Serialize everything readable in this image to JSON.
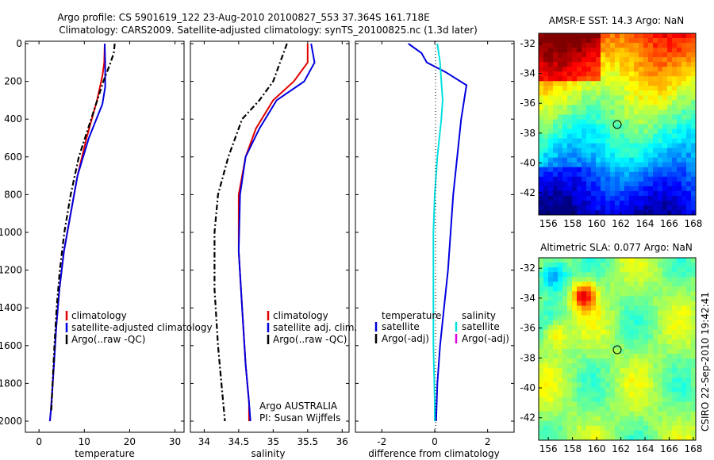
{
  "header": {
    "line1": "Argo profile: CS 5901619_122 23-Aug-2010 20100827_553 37.364S 161.718E",
    "line2": "Climatology: CARS2009. Satellite-adjusted climatology: synTS_20100825.nc (1.3d later)"
  },
  "credit": {
    "line1": "Argo AUSTRALIA",
    "line2": "PI: Susan Wijffels"
  },
  "footer": "CSIRO 22-Sep-2010 19:42:41",
  "chart_data": [
    {
      "type": "line",
      "title": "",
      "xlabel": "temperature",
      "ylabel": "",
      "xlim": [
        -3,
        32
      ],
      "ylim": [
        2060,
        0
      ],
      "xticks": [
        "0",
        "10",
        "20",
        "30"
      ],
      "yticks": [
        "0",
        "200",
        "400",
        "600",
        "800",
        "1000",
        "1200",
        "1400",
        "1600",
        "1800",
        "2000"
      ],
      "legend_position": "lower-right",
      "series": [
        {
          "name": "climatology",
          "color": "#e00000",
          "dash": "solid",
          "x": [
            14.5,
            14.4,
            14.0,
            12.8,
            10.5,
            8.5,
            7.0,
            5.5,
            4.5,
            3.8,
            3.3,
            2.9,
            2.6,
            2.4
          ],
          "y": [
            0,
            100,
            170,
            300,
            500,
            700,
            900,
            1100,
            1300,
            1500,
            1700,
            1850,
            1950,
            2000
          ]
        },
        {
          "name": "satellite-adjusted climatology",
          "color": "#0000e0",
          "dash": "solid",
          "x": [
            14.5,
            14.6,
            14.6,
            14.0,
            11.0,
            8.5,
            7.0,
            5.5,
            4.5,
            3.8,
            3.3,
            2.9,
            2.6,
            2.4
          ],
          "y": [
            0,
            100,
            230,
            320,
            500,
            700,
            900,
            1100,
            1300,
            1500,
            1700,
            1850,
            1950,
            2000
          ]
        },
        {
          "name": "Argo(..raw -QC)",
          "color": "#000000",
          "dash": "dashdot",
          "x": [
            16.7,
            16.5,
            15.8,
            14.2,
            11.5,
            8.8,
            7.0,
            5.6,
            4.6,
            3.9,
            3.4,
            3.0,
            2.7
          ],
          "y": [
            0,
            50,
            100,
            200,
            400,
            600,
            800,
            1000,
            1200,
            1400,
            1600,
            1800,
            1950
          ]
        }
      ]
    },
    {
      "type": "line",
      "title": "",
      "xlabel": "salinity",
      "ylabel": "",
      "xlim": [
        33.8,
        36.1
      ],
      "ylim": [
        2060,
        0
      ],
      "xticks": [
        "34",
        "34.5",
        "35",
        "35.5",
        "36"
      ],
      "legend_position": "lower-right",
      "series": [
        {
          "name": "climatology",
          "color": "#e00000",
          "dash": "solid",
          "x": [
            35.5,
            35.5,
            35.3,
            35.0,
            34.75,
            34.6,
            34.5,
            34.5,
            34.55,
            34.6,
            34.65,
            34.65
          ],
          "y": [
            0,
            100,
            200,
            300,
            450,
            600,
            800,
            1100,
            1400,
            1700,
            1900,
            2000
          ]
        },
        {
          "name": "satellite adj. clim.",
          "color": "#0000e0",
          "dash": "solid",
          "x": [
            35.55,
            35.6,
            35.45,
            35.05,
            34.8,
            34.6,
            34.52,
            34.5,
            34.55,
            34.6,
            34.65,
            34.67
          ],
          "y": [
            0,
            100,
            200,
            300,
            450,
            600,
            800,
            1100,
            1400,
            1700,
            1900,
            2000
          ]
        },
        {
          "name": "Argo(..raw -QC)",
          "color": "#000000",
          "dash": "dashdot",
          "x": [
            35.2,
            35.1,
            35.0,
            34.8,
            34.55,
            34.35,
            34.2,
            34.15,
            34.15,
            34.2,
            34.25,
            34.3
          ],
          "y": [
            0,
            100,
            200,
            300,
            400,
            600,
            800,
            1000,
            1300,
            1600,
            1800,
            2000
          ]
        }
      ]
    },
    {
      "type": "line",
      "title": "",
      "xlabel": "difference from climatology",
      "ylabel": "",
      "xlim": [
        -3,
        3
      ],
      "ylim": [
        2060,
        0
      ],
      "xticks": [
        "-2",
        "0",
        "2"
      ],
      "legend_position": "lower-right",
      "legend_headers": [
        "temperature",
        "salinity"
      ],
      "series": [
        {
          "name": "satellite",
          "group": "temperature",
          "color": "#0000e0",
          "dash": "solid",
          "x": [
            -1.0,
            -0.5,
            -0.3,
            0.4,
            1.2,
            1.0,
            0.85,
            0.7,
            0.6,
            0.5,
            0.35,
            0.2,
            0.1,
            0.05
          ],
          "y": [
            0,
            50,
            100,
            150,
            220,
            400,
            600,
            800,
            1000,
            1200,
            1400,
            1600,
            1800,
            2000
          ]
        },
        {
          "name": "Argo(-adj)",
          "group": "temperature",
          "color": "#000000",
          "dash": "solid",
          "x": [],
          "y": []
        },
        {
          "name": "satellite",
          "group": "salinity",
          "color": "#00e0e0",
          "dash": "solid",
          "x": [
            0.1,
            0.2,
            0.25,
            0.3,
            0.25,
            0.1,
            0.0,
            -0.05,
            -0.05,
            -0.05,
            0.0,
            0.0
          ],
          "y": [
            0,
            100,
            200,
            300,
            400,
            600,
            800,
            1000,
            1300,
            1600,
            1900,
            2000
          ]
        },
        {
          "name": "Argo(-adj)",
          "group": "salinity",
          "color": "#e000e0",
          "dash": "solid",
          "x": [],
          "y": []
        }
      ]
    },
    {
      "type": "heatmap",
      "title": "AMSR-E SST: 14.3 Argo: NaN",
      "xlim": [
        155.2,
        168.2
      ],
      "ylim": [
        -43.5,
        -31.3
      ],
      "xticks": [
        "156",
        "158",
        "160",
        "162",
        "164",
        "166",
        "168"
      ],
      "yticks": [
        "-32",
        "-34",
        "-36",
        "-38",
        "-40",
        "-42"
      ],
      "marker": {
        "lon": 161.718,
        "lat": -37.364
      }
    },
    {
      "type": "heatmap",
      "title": "Altimetric SLA: 0.077 Argo: NaN",
      "xlim": [
        155.2,
        168.2
      ],
      "ylim": [
        -43.5,
        -31.3
      ],
      "xticks": [
        "156",
        "158",
        "160",
        "162",
        "164",
        "166",
        "168"
      ],
      "yticks": [
        "-32",
        "-34",
        "-36",
        "-38",
        "-40",
        "-42"
      ],
      "marker": {
        "lon": 161.718,
        "lat": -37.364
      }
    }
  ]
}
